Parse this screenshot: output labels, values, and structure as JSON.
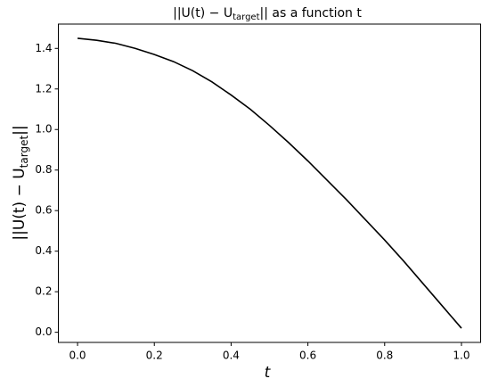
{
  "chart_data": {
    "type": "line",
    "title": [
      "||U(t) − U",
      "target",
      "|| as a function t"
    ],
    "xlabel": "t",
    "ylabel": [
      "||U(t) − U",
      "target",
      "||"
    ],
    "x": [
      0,
      0.05,
      0.1,
      0.15,
      0.2,
      0.25,
      0.3,
      0.35,
      0.4,
      0.45,
      0.5,
      0.55,
      0.6,
      0.65,
      0.7,
      0.75,
      0.8,
      0.85,
      0.9,
      0.95,
      1.0
    ],
    "series": [
      {
        "color": "#000000",
        "values": [
          1.45,
          1.44,
          1.425,
          1.4,
          1.37,
          1.335,
          1.29,
          1.235,
          1.17,
          1.1,
          1.02,
          0.935,
          0.845,
          0.75,
          0.655,
          0.555,
          0.455,
          0.35,
          0.24,
          0.13,
          0.02
        ]
      }
    ],
    "xlim": [
      -0.05,
      1.05
    ],
    "ylim": [
      -0.05,
      1.52
    ],
    "xticks": [
      {
        "value": 0,
        "label": "0.0"
      },
      {
        "value": 0.2,
        "label": "0.2"
      },
      {
        "value": 0.4,
        "label": "0.4"
      },
      {
        "value": 0.6,
        "label": "0.6"
      },
      {
        "value": 0.8,
        "label": "0.8"
      },
      {
        "value": 1.0,
        "label": "1.0"
      }
    ],
    "yticks": [
      {
        "value": 0,
        "label": "0.0"
      },
      {
        "value": 0.2,
        "label": "0.2"
      },
      {
        "value": 0.4,
        "label": "0.4"
      },
      {
        "value": 0.6,
        "label": "0.6"
      },
      {
        "value": 0.8,
        "label": "0.8"
      },
      {
        "value": 1.0,
        "label": "1.0"
      },
      {
        "value": 1.2,
        "label": "1.2"
      },
      {
        "value": 1.4,
        "label": "1.4"
      }
    ],
    "grid": false
  }
}
